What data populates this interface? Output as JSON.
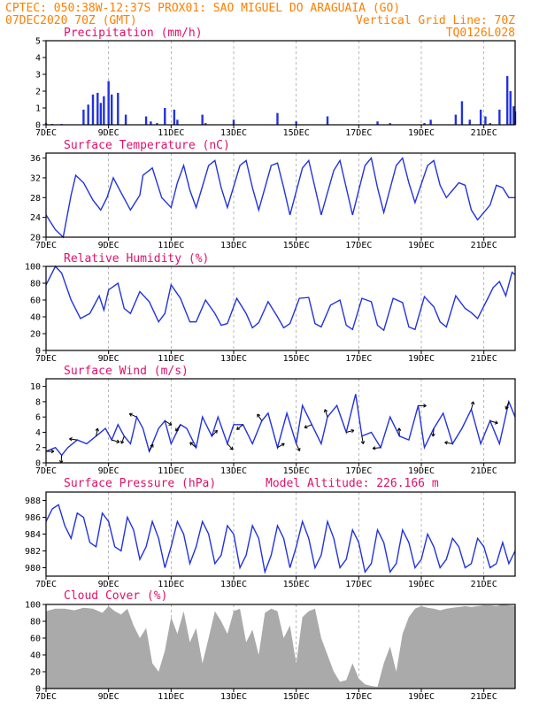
{
  "header": {
    "line1": "CPTEC:  050:38W-12:37S  PROX01: SAO MIGUEL DO ARAGUAIA (GO)",
    "line2_left": "07DEC2020 70Z (GMT)",
    "line2_right": "Vertical Grid Line: 70Z",
    "line3_right": "TQ0126L028"
  },
  "x_ticks": [
    "7DEC",
    "9DEC",
    "11DEC",
    "13DEC",
    "15DEC",
    "17DEC",
    "19DEC",
    "21DEC"
  ],
  "colors": {
    "header": "#ff7f00",
    "title": "#e0106a",
    "series": "#2233dd",
    "cloud": "#aaaaaa"
  },
  "chart_data": [
    {
      "type": "bar",
      "title": "Precipitation (mm/h)",
      "ylim": [
        0,
        5
      ],
      "yticks": [
        "0",
        "1",
        "2",
        "3",
        "4",
        "5"
      ],
      "x_days": [
        7.0,
        7.2,
        7.5,
        8.2,
        8.35,
        8.5,
        8.65,
        8.75,
        8.85,
        9.0,
        9.1,
        9.3,
        9.55,
        10.2,
        10.35,
        10.55,
        10.8,
        11.1,
        11.2,
        12.0,
        12.1,
        13.0,
        14.4,
        15.0,
        16.0,
        17.6,
        18.0,
        19.1,
        19.3,
        20.1,
        20.3,
        20.55,
        20.9,
        21.05,
        21.2,
        21.5,
        21.75,
        21.85,
        21.95,
        22.0
      ],
      "values": [
        0.1,
        0.05,
        0.05,
        0.9,
        1.2,
        1.8,
        1.9,
        1.3,
        1.7,
        2.6,
        1.8,
        1.9,
        0.6,
        0.5,
        0.2,
        0.1,
        1.0,
        0.9,
        0.3,
        0.6,
        0.1,
        0.3,
        0.7,
        0.2,
        0.5,
        0.2,
        0.1,
        0.1,
        0.3,
        0.6,
        1.4,
        0.3,
        0.9,
        0.5,
        0.1,
        0.9,
        2.9,
        2.0,
        1.1,
        0.8
      ]
    },
    {
      "type": "line",
      "title": "Surface Temperature (nC)",
      "ylim": [
        20,
        37
      ],
      "yticks": [
        "20",
        "24",
        "28",
        "32",
        "36"
      ],
      "x_days": [
        7.0,
        7.3,
        7.55,
        7.8,
        7.95,
        8.2,
        8.5,
        8.75,
        8.95,
        9.15,
        9.4,
        9.7,
        10.0,
        10.1,
        10.4,
        10.7,
        11.0,
        11.2,
        11.4,
        11.6,
        11.8,
        12.2,
        12.4,
        12.6,
        12.8,
        13.2,
        13.4,
        13.6,
        13.8,
        14.2,
        14.4,
        14.6,
        14.8,
        15.2,
        15.4,
        15.6,
        15.8,
        16.2,
        16.4,
        16.6,
        16.8,
        17.2,
        17.4,
        17.6,
        17.8,
        18.2,
        18.4,
        18.6,
        18.8,
        19.2,
        19.4,
        19.6,
        19.8,
        20.2,
        20.4,
        20.6,
        20.8,
        21.2,
        21.4,
        21.6,
        21.8,
        22.0
      ],
      "values": [
        24.5,
        21.5,
        20.0,
        28.5,
        32.5,
        31.0,
        27.5,
        25.5,
        28.0,
        32.0,
        29.0,
        25.5,
        28.5,
        32.5,
        34.0,
        28.0,
        26.0,
        31.0,
        34.5,
        29.5,
        26.0,
        34.5,
        35.5,
        30.0,
        26.0,
        34.5,
        35.5,
        30.0,
        25.5,
        34.5,
        35.0,
        30.0,
        24.5,
        34.0,
        35.5,
        30.0,
        24.5,
        33.5,
        35.5,
        30.0,
        24.5,
        34.5,
        36.0,
        30.0,
        25.0,
        34.5,
        36.0,
        31.0,
        27.0,
        34.5,
        35.5,
        30.5,
        28.0,
        31.0,
        30.5,
        25.5,
        23.5,
        26.5,
        30.5,
        30.0,
        28.0,
        28.0
      ]
    },
    {
      "type": "line",
      "title": "Relative Humidity (%)",
      "ylim": [
        0,
        100
      ],
      "yticks": [
        "0",
        "20",
        "40",
        "60",
        "80",
        "100"
      ],
      "x_days": [
        7.0,
        7.3,
        7.5,
        7.8,
        8.1,
        8.4,
        8.7,
        8.85,
        9.0,
        9.3,
        9.5,
        9.7,
        10.0,
        10.3,
        10.6,
        10.8,
        11.0,
        11.3,
        11.6,
        11.8,
        12.1,
        12.4,
        12.6,
        12.8,
        13.1,
        13.4,
        13.6,
        13.8,
        14.1,
        14.4,
        14.6,
        14.8,
        15.1,
        15.4,
        15.6,
        15.8,
        16.1,
        16.4,
        16.6,
        16.8,
        17.1,
        17.4,
        17.6,
        17.8,
        18.1,
        18.4,
        18.6,
        18.8,
        19.1,
        19.4,
        19.6,
        19.8,
        20.1,
        20.4,
        20.6,
        20.8,
        21.1,
        21.3,
        21.5,
        21.7,
        21.9,
        22.0
      ],
      "values": [
        78,
        100,
        92,
        60,
        38,
        44,
        65,
        48,
        72,
        80,
        50,
        44,
        70,
        58,
        34,
        44,
        78,
        62,
        34,
        34,
        60,
        44,
        30,
        32,
        62,
        44,
        27,
        33,
        58,
        40,
        27,
        32,
        62,
        63,
        32,
        28,
        54,
        60,
        30,
        25,
        62,
        58,
        30,
        24,
        62,
        57,
        28,
        25,
        64,
        52,
        34,
        28,
        65,
        50,
        45,
        38,
        60,
        75,
        82,
        65,
        93,
        90
      ]
    },
    {
      "type": "line",
      "title": "Surface Wind (m/s)",
      "ylim": [
        0,
        11
      ],
      "yticks": [
        "0",
        "2",
        "4",
        "6",
        "8",
        "10"
      ],
      "x_days": [
        7.0,
        7.3,
        7.5,
        7.7,
        8.0,
        8.3,
        8.6,
        8.9,
        9.1,
        9.3,
        9.5,
        9.7,
        9.9,
        10.1,
        10.3,
        10.6,
        10.8,
        11.0,
        11.3,
        11.5,
        11.8,
        12.0,
        12.3,
        12.5,
        12.8,
        13.0,
        13.3,
        13.6,
        13.9,
        14.1,
        14.4,
        14.7,
        15.0,
        15.2,
        15.5,
        15.8,
        16.0,
        16.3,
        16.6,
        16.9,
        17.1,
        17.4,
        17.7,
        18.0,
        18.3,
        18.6,
        18.9,
        19.1,
        19.4,
        19.7,
        20.0,
        20.3,
        20.6,
        20.9,
        21.2,
        21.5,
        21.8,
        22.0
      ],
      "values": [
        1.5,
        2.0,
        1.0,
        2.0,
        3.0,
        2.5,
        3.5,
        4.5,
        3.0,
        5.0,
        3.5,
        2.5,
        6.0,
        4.5,
        1.5,
        4.5,
        5.5,
        2.5,
        5.0,
        4.5,
        2.0,
        6.0,
        3.5,
        6.0,
        2.5,
        5.0,
        5.0,
        2.5,
        5.5,
        6.5,
        2.0,
        6.5,
        2.5,
        7.5,
        5.0,
        2.5,
        6.0,
        7.5,
        4.0,
        9.0,
        3.5,
        4.0,
        2.0,
        6.0,
        3.5,
        3.0,
        7.5,
        2.0,
        4.5,
        6.5,
        2.5,
        4.5,
        7.0,
        2.5,
        5.5,
        2.5,
        8.0,
        6.0
      ]
    },
    {
      "type": "line",
      "title": "Surface Pressure (hPa)",
      "annotation": "Model Altitude: 226.166  m",
      "ylim": [
        979,
        989
      ],
      "yticks": [
        "980",
        "982",
        "984",
        "986",
        "988"
      ],
      "x_days": [
        7.0,
        7.2,
        7.4,
        7.6,
        7.8,
        8.0,
        8.2,
        8.4,
        8.6,
        8.8,
        9.0,
        9.2,
        9.4,
        9.6,
        9.8,
        10.0,
        10.2,
        10.4,
        10.6,
        10.8,
        11.0,
        11.2,
        11.4,
        11.6,
        11.8,
        12.0,
        12.2,
        12.4,
        12.6,
        12.8,
        13.0,
        13.2,
        13.4,
        13.6,
        13.8,
        14.0,
        14.2,
        14.4,
        14.6,
        14.8,
        15.0,
        15.2,
        15.4,
        15.6,
        15.8,
        16.0,
        16.2,
        16.4,
        16.6,
        16.8,
        17.0,
        17.2,
        17.4,
        17.6,
        17.8,
        18.0,
        18.2,
        18.4,
        18.6,
        18.8,
        19.0,
        19.2,
        19.4,
        19.6,
        19.8,
        20.0,
        20.2,
        20.4,
        20.6,
        20.8,
        21.0,
        21.2,
        21.4,
        21.6,
        21.8,
        22.0
      ],
      "values": [
        985.5,
        987.0,
        987.5,
        985.0,
        983.5,
        986.5,
        986.0,
        983.0,
        982.5,
        986.5,
        985.5,
        982.5,
        982.0,
        986.0,
        984.5,
        981.0,
        982.5,
        985.5,
        983.5,
        980.0,
        982.5,
        985.5,
        984.0,
        980.5,
        982.5,
        985.5,
        984.0,
        980.5,
        981.5,
        985.0,
        984.0,
        980.0,
        981.5,
        985.0,
        983.5,
        979.5,
        981.5,
        985.0,
        983.5,
        980.0,
        982.5,
        985.5,
        983.5,
        980.0,
        981.5,
        985.5,
        983.5,
        980.0,
        981.0,
        984.5,
        983.0,
        979.5,
        980.5,
        984.5,
        983.0,
        979.5,
        980.5,
        984.5,
        983.0,
        980.0,
        981.0,
        984.0,
        982.5,
        980.0,
        981.0,
        983.5,
        982.5,
        980.0,
        980.5,
        983.5,
        982.5,
        980.0,
        980.5,
        983.0,
        980.5,
        982.0
      ]
    },
    {
      "type": "area",
      "title": "Cloud Cover (%)",
      "ylim": [
        0,
        100
      ],
      "yticks": [
        "0",
        "20",
        "40",
        "60",
        "80",
        "100"
      ],
      "x_days": [
        7.0,
        7.3,
        7.6,
        7.9,
        8.2,
        8.5,
        8.8,
        9.0,
        9.2,
        9.4,
        9.6,
        9.8,
        10.0,
        10.2,
        10.4,
        10.6,
        10.8,
        11.0,
        11.2,
        11.4,
        11.6,
        11.8,
        12.0,
        12.2,
        12.4,
        12.6,
        12.8,
        13.0,
        13.2,
        13.4,
        13.6,
        13.8,
        14.0,
        14.2,
        14.4,
        14.6,
        14.8,
        15.0,
        15.2,
        15.4,
        15.6,
        15.8,
        16.0,
        16.2,
        16.4,
        16.6,
        16.8,
        17.0,
        17.2,
        17.4,
        17.6,
        17.8,
        18.0,
        18.2,
        18.4,
        18.6,
        18.8,
        19.0,
        19.2,
        19.4,
        19.6,
        19.8,
        20.0,
        20.2,
        20.4,
        20.6,
        20.8,
        21.0,
        21.2,
        21.4,
        21.6,
        21.8,
        22.0
      ],
      "values": [
        92,
        95,
        95,
        93,
        96,
        95,
        90,
        98,
        92,
        88,
        95,
        75,
        60,
        72,
        30,
        20,
        45,
        85,
        65,
        92,
        55,
        72,
        30,
        60,
        92,
        80,
        65,
        92,
        95,
        55,
        70,
        40,
        90,
        95,
        92,
        60,
        75,
        30,
        85,
        92,
        95,
        60,
        40,
        20,
        8,
        10,
        30,
        12,
        5,
        3,
        2,
        30,
        50,
        20,
        65,
        85,
        95,
        98,
        96,
        95,
        93,
        95,
        96,
        97,
        98,
        97,
        98,
        99,
        99,
        98,
        100,
        99,
        98
      ]
    }
  ]
}
